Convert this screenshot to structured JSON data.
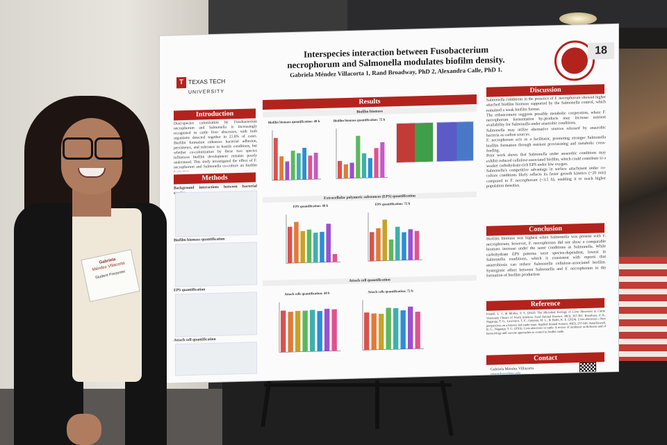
{
  "poster": {
    "title_line1": "Interspecies interaction between Fusobacterium",
    "title_line2": "necrophorum and Salmonella modulates biofilm density.",
    "authors": "Gabriela Méndez Villacorta 1, Rand Broadway, PhD 2, Alexandra Calle, PhD 1.",
    "logo_line1": "TEXAS TECH",
    "logo_line2": "UNIVERSITY",
    "logo_mark": "T",
    "board_number": "18",
    "sections": {
      "introduction": "Introduction",
      "methods": "Methods",
      "results": "Results",
      "discussion": "Discussion",
      "conclusion": "Conclusion",
      "reference": "Reference",
      "contact": "Contact"
    },
    "introduction_text": "Dual-species colonization by Fusobacterium necrophorum and Salmonella is increasingly recognized in cattle liver abscesses, with both organisms detected together in 21.8% of cases. Biofilm formation enhances bacterial adhesion, persistence, and tolerance to hostile conditions, but whether co-colonization by these two species influences biofilm development remains poorly understood. This study investigated the effect of F. necrophorum and Salmonella co-culture on biofilm formation.",
    "methods_labels": [
      "Background interactions between bacterial species",
      "Biofilm biomass quantification",
      "EPS quantification",
      "Attach cell quantification"
    ],
    "results_subsections": {
      "biofilm": "Biofilm biomass",
      "eps": "Extracellular polymeric substances (EPS) quantification",
      "attach": "Attach cell quantification"
    },
    "discussion_text": [
      "Salmonella conditions in the presence of F. necrophorum showed higher attached biofilm biomass supported by the Salmonella control, which remained a weak biofilm former.",
      "The enhancement suggests possible metabolic cooperation, where F. necrophorum fermentation by-products may increase nutrient availability for Salmonella under anaerobic conditions.",
      "Salmonella may utilize alternative sources released by anaerobic bacteria as carbon sources.",
      "F. necrophorum acts as a facilitator, promoting stronger Salmonella biofilm formation through nutrient provisioning and metabolic cross-feeding.",
      "Prior work shows that Salmonella under anaerobic conditions may exhibit reduced cellulose-associated biofilm, which could contribute to a weaker carbohydrate-rich EPS under low oxygen.",
      "Salmonella's competitive advantage in surface attachment under co-culture conditions likely reflects its faster growth kinetics (~20 min) compared to F. necrophorum (~3.5 h), enabling it to reach higher population densities."
    ],
    "conclusion_text": "Biofilm biomass was highest when Salmonella was present with F. necrophorum; however, F. necrophorum did not show a comparable biomass increase under the same conditions as Salmonella. While carbohydrate EPS patterns were species-dependent, lowest in Salmonella conditions, which is consistent with reports that anaerobiosis can reduce Salmonella cellulose-associated biofilm. Synergistic effect between Salmonella and F. necrophorum in the formation of biofilm production",
    "reference_text": "Pinnell, L. J., & Morley, P. S. (2022). The Microbial Ecology of Liver Abscesses in Cattle. Veterinary Clinics of North America: Food Animal Practice, 38(3), 367-381. Broadway, P. R., Nagaraja, T. G., Lawrence, T. E., Galyean, M. L., & Hales, K. E. (2024). Liver abscesses—New perspectives on a historic fed-cattle issue. Applied Animal Science, 40(3), 237-245. Amachawadi, R. G., Nagaraja, T. G. (2016). Liver abscesses in cattle: A review of incidence in Holsteins and of bacteriology and vaccine approaches to control in feedlot cattle.",
    "contact_name": "Gabriela Méndez Villacorta",
    "contact_email": "gmendezv@ttu.edu"
  },
  "badge": {
    "line1": "Gabriela",
    "line2": "Méndez Villacorta",
    "line3": "Student Presenter"
  },
  "chart_data": [
    {
      "type": "bar",
      "title": "Biofilm biomass quantification: 48 h",
      "values": [
        0.32,
        0.18,
        0.14,
        0.22,
        0.2,
        0.24,
        0.18,
        0.2
      ],
      "colors": [
        "#d9534f",
        "#e07b39",
        "#9c4fd1",
        "#5cb85c",
        "#3fb0ac",
        "#2a8fd6",
        "#e0528f",
        "#c45ac7"
      ]
    },
    {
      "type": "bar",
      "title": "Biofilm biomass quantification: 72 h",
      "values": [
        0.25,
        0.2,
        0.22,
        0.6,
        0.35,
        0.28,
        0.42,
        0.5
      ],
      "colors": [
        "#d9534f",
        "#e07b39",
        "#9c4fd1",
        "#5cb85c",
        "#3fb0ac",
        "#2a8fd6",
        "#e0528f",
        "#c45ac7"
      ]
    },
    {
      "type": "bar",
      "title": "EPS quantification: 48 h",
      "values": [
        0.55,
        0.62,
        0.48,
        0.5,
        0.45,
        0.46,
        0.58,
        0.12
      ],
      "colors": [
        "#d9534f",
        "#e07b39",
        "#c9a226",
        "#5cb85c",
        "#3fb0ac",
        "#2a8fd6",
        "#9c4fd1",
        "#e0528f"
      ]
    },
    {
      "type": "bar",
      "title": "EPS quantification: 72 h",
      "values": [
        0.62,
        0.7,
        0.88,
        0.45,
        0.72,
        0.6,
        0.66,
        0.62
      ],
      "colors": [
        "#d9534f",
        "#e07b39",
        "#c9a226",
        "#5cb85c",
        "#3fb0ac",
        "#2a8fd6",
        "#9c4fd1",
        "#e0528f"
      ]
    },
    {
      "type": "bar",
      "title": "Attach cells quantification: 48 h",
      "values": [
        6.2,
        6.0,
        6.1,
        6.1,
        6.2,
        6.0,
        6.3,
        6.2
      ],
      "colors": [
        "#d9534f",
        "#e07b39",
        "#c9a226",
        "#5cb85c",
        "#3fb0ac",
        "#2a8fd6",
        "#9c4fd1",
        "#e0528f"
      ]
    },
    {
      "type": "bar",
      "title": "Attach cells quantification: 72 h",
      "values": [
        6.4,
        6.2,
        6.1,
        7.1,
        7.0,
        6.6,
        7.2,
        6.3
      ],
      "colors": [
        "#d9534f",
        "#e07b39",
        "#c9a226",
        "#5cb85c",
        "#3fb0ac",
        "#2a8fd6",
        "#9c4fd1",
        "#e0528f"
      ]
    }
  ]
}
